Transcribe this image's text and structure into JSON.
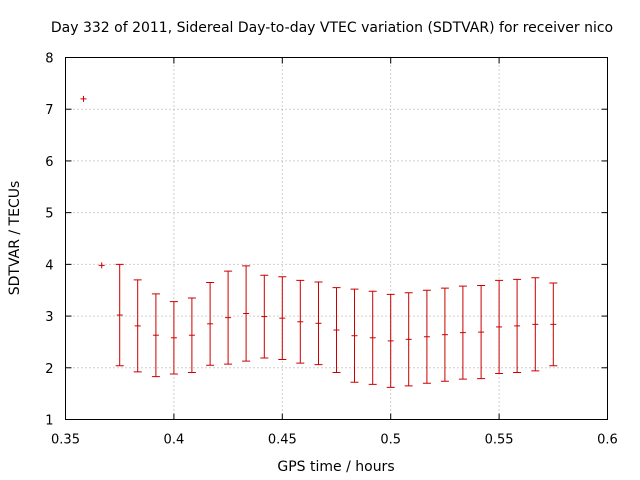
{
  "chart_data": {
    "type": "scatter",
    "title": "Day 332 of 2011, Sidereal Day-to-day VTEC variation (SDTVAR) for receiver nico",
    "xlabel": "GPS time / hours",
    "ylabel": "SDTVAR / TECUs",
    "xlim": [
      0.35,
      0.6
    ],
    "ylim": [
      1,
      8
    ],
    "xticks": [
      "0.35",
      "0.4",
      "0.45",
      "0.5",
      "0.55",
      "0.6"
    ],
    "yticks": [
      "1",
      "2",
      "3",
      "4",
      "5",
      "6",
      "7",
      "8"
    ],
    "grid": true,
    "series_color": "#cc0000",
    "points": [
      {
        "x": 0.3583,
        "y": 7.2,
        "err": 0
      },
      {
        "x": 0.3667,
        "y": 3.98,
        "err": 0
      },
      {
        "x": 0.375,
        "y": 3.02,
        "err": 0.98
      },
      {
        "x": 0.3833,
        "y": 2.81,
        "err": 0.89
      },
      {
        "x": 0.3917,
        "y": 2.63,
        "err": 0.8
      },
      {
        "x": 0.4,
        "y": 2.58,
        "err": 0.7
      },
      {
        "x": 0.4083,
        "y": 2.63,
        "err": 0.72
      },
      {
        "x": 0.4167,
        "y": 2.85,
        "err": 0.8
      },
      {
        "x": 0.425,
        "y": 2.97,
        "err": 0.9
      },
      {
        "x": 0.4333,
        "y": 3.05,
        "err": 0.92
      },
      {
        "x": 0.4417,
        "y": 2.99,
        "err": 0.8
      },
      {
        "x": 0.45,
        "y": 2.96,
        "err": 0.8
      },
      {
        "x": 0.4583,
        "y": 2.89,
        "err": 0.8
      },
      {
        "x": 0.4667,
        "y": 2.86,
        "err": 0.8
      },
      {
        "x": 0.475,
        "y": 2.73,
        "err": 0.82
      },
      {
        "x": 0.4833,
        "y": 2.62,
        "err": 0.9
      },
      {
        "x": 0.4917,
        "y": 2.58,
        "err": 0.9
      },
      {
        "x": 0.5,
        "y": 2.52,
        "err": 0.9
      },
      {
        "x": 0.5083,
        "y": 2.55,
        "err": 0.9
      },
      {
        "x": 0.5167,
        "y": 2.6,
        "err": 0.9
      },
      {
        "x": 0.525,
        "y": 2.64,
        "err": 0.9
      },
      {
        "x": 0.5333,
        "y": 2.68,
        "err": 0.9
      },
      {
        "x": 0.5417,
        "y": 2.69,
        "err": 0.9
      },
      {
        "x": 0.55,
        "y": 2.79,
        "err": 0.9
      },
      {
        "x": 0.5583,
        "y": 2.81,
        "err": 0.9
      },
      {
        "x": 0.5667,
        "y": 2.84,
        "err": 0.9
      },
      {
        "x": 0.575,
        "y": 2.84,
        "err": 0.8
      }
    ]
  }
}
